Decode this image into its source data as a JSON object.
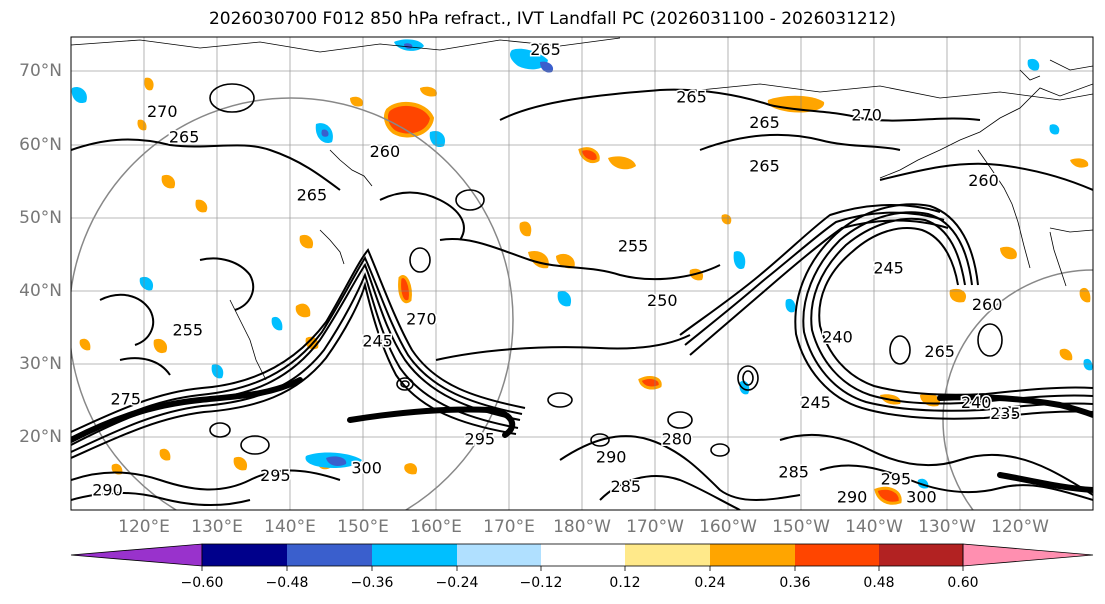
{
  "title": "2026030700 F012 850 hPa refract., IVT Landfall PC (2026031100 - 2026031212)",
  "lat_labels": [
    "70°N",
    "60°N",
    "50°N",
    "40°N",
    "30°N",
    "20°N"
  ],
  "lon_labels": [
    "120°E",
    "130°E",
    "140°E",
    "150°E",
    "160°E",
    "170°E",
    "180°W",
    "170°W",
    "160°W",
    "150°W",
    "140°W",
    "130°W",
    "120°W"
  ],
  "colorbar": {
    "ticks": [
      "−0.60",
      "−0.48",
      "−0.36",
      "−0.24",
      "−0.12",
      "0.12",
      "0.24",
      "0.36",
      "0.48",
      "0.60"
    ],
    "colors": [
      "#9932cc",
      "#00008b",
      "#3a5fcd",
      "#00bfff",
      "#b0e0ff",
      "#ffffff",
      "#ffe98a",
      "#ffa500",
      "#ff4500",
      "#b22222",
      "#ff8fb0"
    ]
  },
  "contour_labels": [
    {
      "text": "265",
      "lat": 72.5,
      "lon": 175
    },
    {
      "text": "270",
      "lat": 64,
      "lon": 122.5
    },
    {
      "text": "265",
      "lat": 60.5,
      "lon": 125.5
    },
    {
      "text": "265",
      "lat": 52.5,
      "lon": 143
    },
    {
      "text": "260",
      "lat": 58.5,
      "lon": 153
    },
    {
      "text": "265",
      "lat": 66,
      "lon": -165
    },
    {
      "text": "265",
      "lat": 62.5,
      "lon": -155
    },
    {
      "text": "270",
      "lat": 63.5,
      "lon": -141
    },
    {
      "text": "260",
      "lat": 54.5,
      "lon": -125
    },
    {
      "text": "265",
      "lat": 56.5,
      "lon": -155
    },
    {
      "text": "245",
      "lat": 42.5,
      "lon": -138
    },
    {
      "text": "240",
      "lat": 33,
      "lon": -145
    },
    {
      "text": "265",
      "lat": 31,
      "lon": -131
    },
    {
      "text": "260",
      "lat": 37.5,
      "lon": -124.5
    },
    {
      "text": "245",
      "lat": 24,
      "lon": -148
    },
    {
      "text": "240",
      "lat": 24,
      "lon": -126
    },
    {
      "text": "235",
      "lat": 22.5,
      "lon": -122
    },
    {
      "text": "250",
      "lat": 38,
      "lon": -169
    },
    {
      "text": "255",
      "lat": 45.5,
      "lon": -173
    },
    {
      "text": "295",
      "lat": 19,
      "lon": 166
    },
    {
      "text": "280",
      "lat": 19,
      "lon": -167
    },
    {
      "text": "285",
      "lat": 12.5,
      "lon": -174
    },
    {
      "text": "290",
      "lat": 16.5,
      "lon": -176
    },
    {
      "text": "300",
      "lat": 15,
      "lon": 150.5
    },
    {
      "text": "295",
      "lat": 14,
      "lon": 138
    },
    {
      "text": "290",
      "lat": 12,
      "lon": 115
    },
    {
      "text": "275",
      "lat": 24.5,
      "lon": 117.5
    },
    {
      "text": "255",
      "lat": 34,
      "lon": 126
    },
    {
      "text": "245",
      "lat": 32.5,
      "lon": 152
    },
    {
      "text": "270",
      "lat": 35.5,
      "lon": 158
    },
    {
      "text": "295",
      "lat": 13.5,
      "lon": -137
    },
    {
      "text": "290",
      "lat": 11,
      "lon": -143
    },
    {
      "text": "300",
      "lat": 11,
      "lon": -133.5
    },
    {
      "text": "285",
      "lat": 14.5,
      "lon": -151
    }
  ]
}
